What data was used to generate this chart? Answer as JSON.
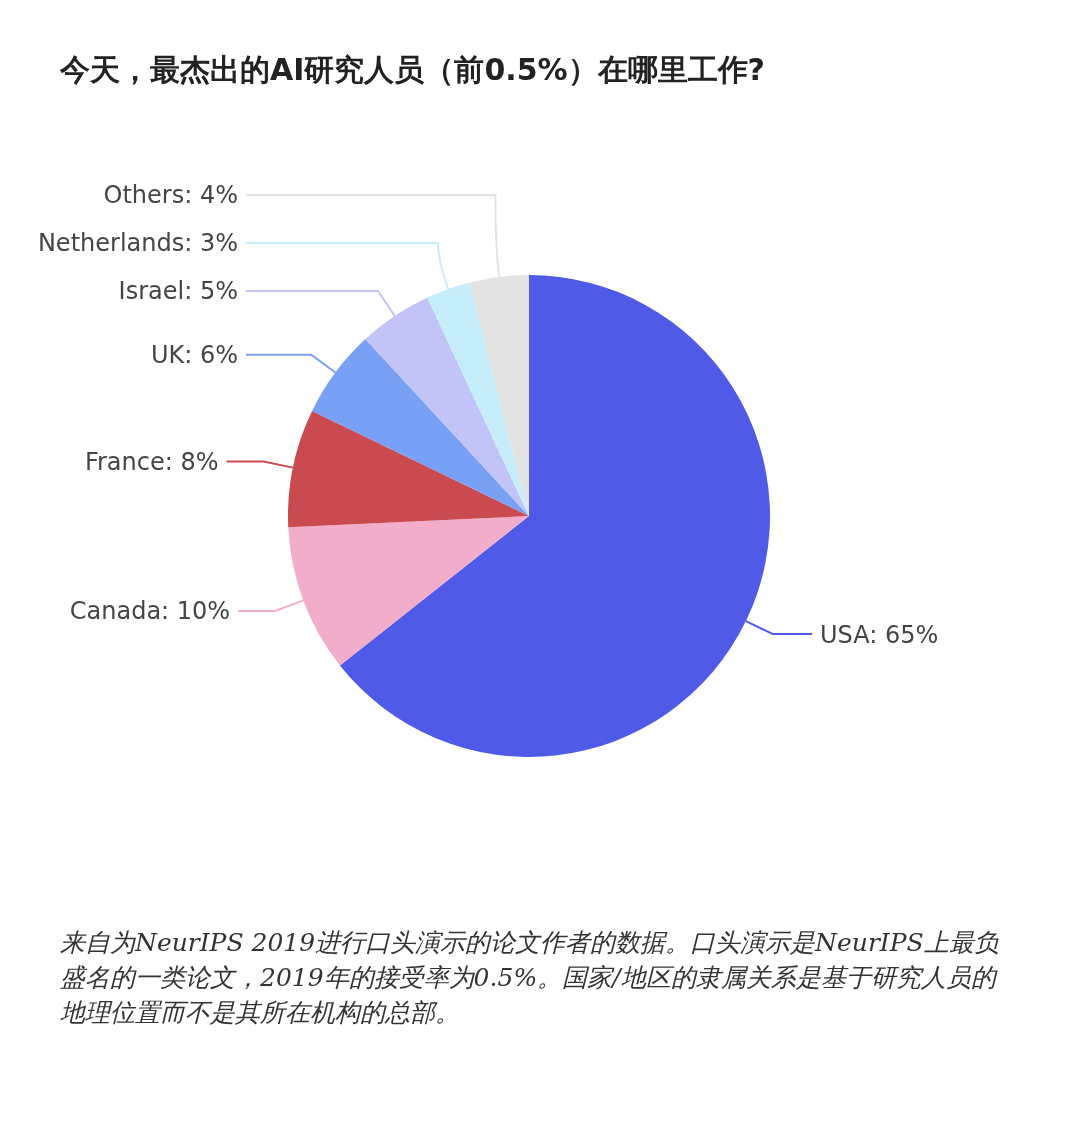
{
  "chart_data": {
    "type": "pie",
    "title": "今天，最杰出的AI研究人员（前0.5%）在哪里工作?",
    "categories": [
      "USA",
      "Canada",
      "France",
      "UK",
      "Israel",
      "Netherlands",
      "Others"
    ],
    "values": [
      65,
      10,
      8,
      6,
      5,
      3,
      4
    ],
    "value_labels": [
      "65%",
      "10%",
      "8%",
      "6%",
      "5%",
      "3%",
      "4%"
    ],
    "colors": [
      "#4f5ae6",
      "#f2adcb",
      "#c94b50",
      "#78a0f5",
      "#c2c4f7",
      "#c5eefa",
      "#e3e3e3"
    ],
    "annotations": [
      "来自为NeurIPS 2019进行口头演示的论文作者的数据。口头演示是NeurIPS上最负盛名的一类论文，2019年的接受率为0.5%。国家/地区的隶属关系是基于研究人员的地理位置而不是其所在机构的总部。"
    ]
  }
}
